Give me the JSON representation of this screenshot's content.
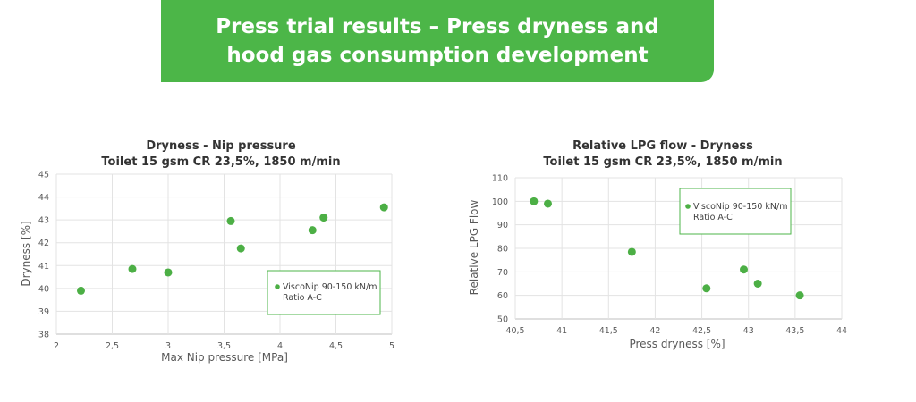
{
  "banner": {
    "line1": "Press trial results – Press dryness and",
    "line2": "hood gas consumption development"
  },
  "colors": {
    "accent": "#4cb648",
    "marker": "#4caf45"
  },
  "chart_data": [
    {
      "type": "scatter",
      "title": "Dryness - Nip pressure",
      "subtitle": "Toilet 15 gsm CR 23,5%, 1850 m/min",
      "xlabel": "Max Nip pressure [MPa]",
      "ylabel": "Dryness [%]",
      "xlim": [
        2,
        5
      ],
      "ylim": [
        38,
        45
      ],
      "xticks": [
        "2",
        "2,5",
        "3",
        "3,5",
        "4",
        "4,5",
        "5"
      ],
      "yticks": [
        "38",
        "39",
        "40",
        "41",
        "42",
        "43",
        "44",
        "45"
      ],
      "grid": true,
      "legend_position": "bottom-right",
      "series": [
        {
          "name": "ViscoNip 90-150 kN/m",
          "name2": "Ratio A-C",
          "points": [
            {
              "x": 2.22,
              "y": 39.9
            },
            {
              "x": 2.68,
              "y": 40.85
            },
            {
              "x": 3.0,
              "y": 40.7
            },
            {
              "x": 3.56,
              "y": 42.95
            },
            {
              "x": 3.65,
              "y": 41.75
            },
            {
              "x": 4.29,
              "y": 42.55
            },
            {
              "x": 4.39,
              "y": 43.1
            },
            {
              "x": 4.93,
              "y": 43.55
            }
          ]
        }
      ]
    },
    {
      "type": "scatter",
      "title": "Relative LPG flow - Dryness",
      "subtitle": "Toilet 15 gsm CR 23,5%, 1850 m/min",
      "xlabel": "Press dryness [%]",
      "ylabel": "Relative LPG Flow",
      "xlim": [
        40.5,
        44
      ],
      "ylim": [
        50,
        110
      ],
      "xticks": [
        "40,5",
        "41",
        "41,5",
        "42",
        "42,5",
        "43",
        "43,5",
        "44"
      ],
      "yticks": [
        "50",
        "60",
        "70",
        "80",
        "90",
        "100",
        "110"
      ],
      "grid": true,
      "legend_position": "top-right",
      "series": [
        {
          "name": "ViscoNip 90-150 kN/m",
          "name2": "Ratio A-C",
          "points": [
            {
              "x": 40.7,
              "y": 100
            },
            {
              "x": 40.85,
              "y": 99
            },
            {
              "x": 41.75,
              "y": 78.5
            },
            {
              "x": 42.55,
              "y": 63
            },
            {
              "x": 42.95,
              "y": 71
            },
            {
              "x": 43.1,
              "y": 65
            },
            {
              "x": 43.55,
              "y": 60
            }
          ]
        }
      ]
    }
  ]
}
